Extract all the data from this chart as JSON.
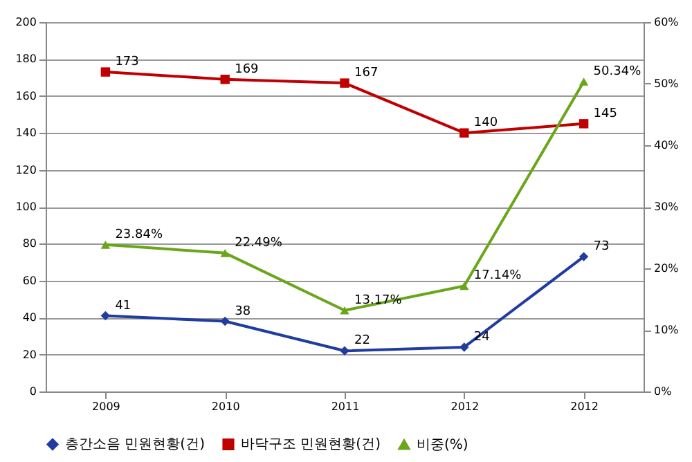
{
  "chart_data": {
    "type": "line",
    "categories": [
      "2009",
      "2010",
      "2011",
      "2012",
      "2012"
    ],
    "series": [
      {
        "name": "층간소음 민원현황(건)",
        "color": "#1f3c9e",
        "marker": "diamond",
        "values": [
          41,
          38,
          22,
          24,
          73
        ],
        "value_labels": [
          "41",
          "38",
          "22",
          "24",
          "73"
        ]
      },
      {
        "name": "바닥구조 민원현황(건)",
        "color": "#c00000",
        "marker": "square",
        "values": [
          173,
          169,
          167,
          140,
          145
        ],
        "value_labels": [
          "173",
          "169",
          "167",
          "140",
          "145"
        ]
      },
      {
        "name": "비중(%)",
        "color": "#6aa61a",
        "marker": "triangle",
        "axis": "y2",
        "values": [
          23.84,
          22.49,
          13.17,
          17.14,
          50.34
        ],
        "value_labels": [
          "23.84%",
          "22.49%",
          "13.17%",
          "17.14%",
          "50.34%"
        ]
      }
    ],
    "ylim": [
      0,
      200
    ],
    "yticks": [
      0,
      20,
      40,
      60,
      80,
      100,
      120,
      140,
      160,
      180,
      200
    ],
    "y2lim": [
      0,
      60
    ],
    "y2ticks": [
      {
        "value": 0,
        "label": "0%"
      },
      {
        "value": 10,
        "label": "10%"
      },
      {
        "value": 20,
        "label": "20%"
      },
      {
        "value": 30,
        "label": "30%"
      },
      {
        "value": 40,
        "label": "40%"
      },
      {
        "value": 50,
        "label": "50%"
      },
      {
        "value": 60,
        "label": "60%"
      }
    ],
    "grid": "y",
    "legend": "bottom",
    "line_style": "solid"
  }
}
